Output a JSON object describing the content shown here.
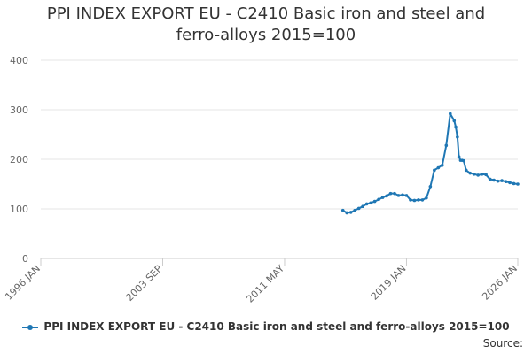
{
  "chart_data": {
    "type": "line",
    "title_lines": [
      "PPI INDEX EXPORT EU - C2410 Basic iron and steel and",
      "ferro-alloys 2015=100"
    ],
    "ylim": [
      0,
      400
    ],
    "yticks": [
      0,
      100,
      200,
      300,
      400
    ],
    "xlim": [
      1996.0,
      2026.0
    ],
    "xticks": [
      {
        "value": 1996.0,
        "label": "1996 JAN"
      },
      {
        "value": 2003.667,
        "label": "2003 SEP"
      },
      {
        "value": 2011.333,
        "label": "2011 MAY"
      },
      {
        "value": 2019.0,
        "label": "2019 JAN"
      },
      {
        "value": 2026.0,
        "label": "2026 JAN"
      }
    ],
    "series": [
      {
        "name": "PPI INDEX EXPORT EU - C2410 Basic iron and steel and ferro-alloys 2015=100",
        "color": "#1f77b4",
        "x": [
          2015.0,
          2015.25,
          2015.5,
          2015.75,
          2016.0,
          2016.25,
          2016.5,
          2016.75,
          2017.0,
          2017.25,
          2017.5,
          2017.75,
          2018.0,
          2018.25,
          2018.5,
          2018.75,
          2019.0,
          2019.25,
          2019.5,
          2019.75,
          2020.0,
          2020.25,
          2020.5,
          2020.75,
          2021.0,
          2021.25,
          2021.5,
          2021.75,
          2022.0,
          2022.1,
          2022.2,
          2022.3,
          2022.4,
          2022.5,
          2022.6,
          2022.75,
          2023.0,
          2023.25,
          2023.5,
          2023.75,
          2024.0,
          2024.25,
          2024.5,
          2024.75,
          2025.0,
          2025.25,
          2025.5,
          2025.75,
          2026.0
        ],
        "y": [
          97,
          92,
          93,
          97,
          101,
          105,
          110,
          112,
          115,
          119,
          123,
          126,
          131,
          131,
          127,
          128,
          127,
          118,
          117,
          118,
          118,
          122,
          145,
          178,
          183,
          188,
          228,
          292,
          278,
          265,
          245,
          205,
          198,
          198,
          197,
          178,
          172,
          170,
          168,
          170,
          169,
          160,
          158,
          156,
          157,
          155,
          153,
          151,
          150
        ]
      }
    ],
    "legend_position": "bottom",
    "grid": true,
    "source_label": "Source:"
  }
}
